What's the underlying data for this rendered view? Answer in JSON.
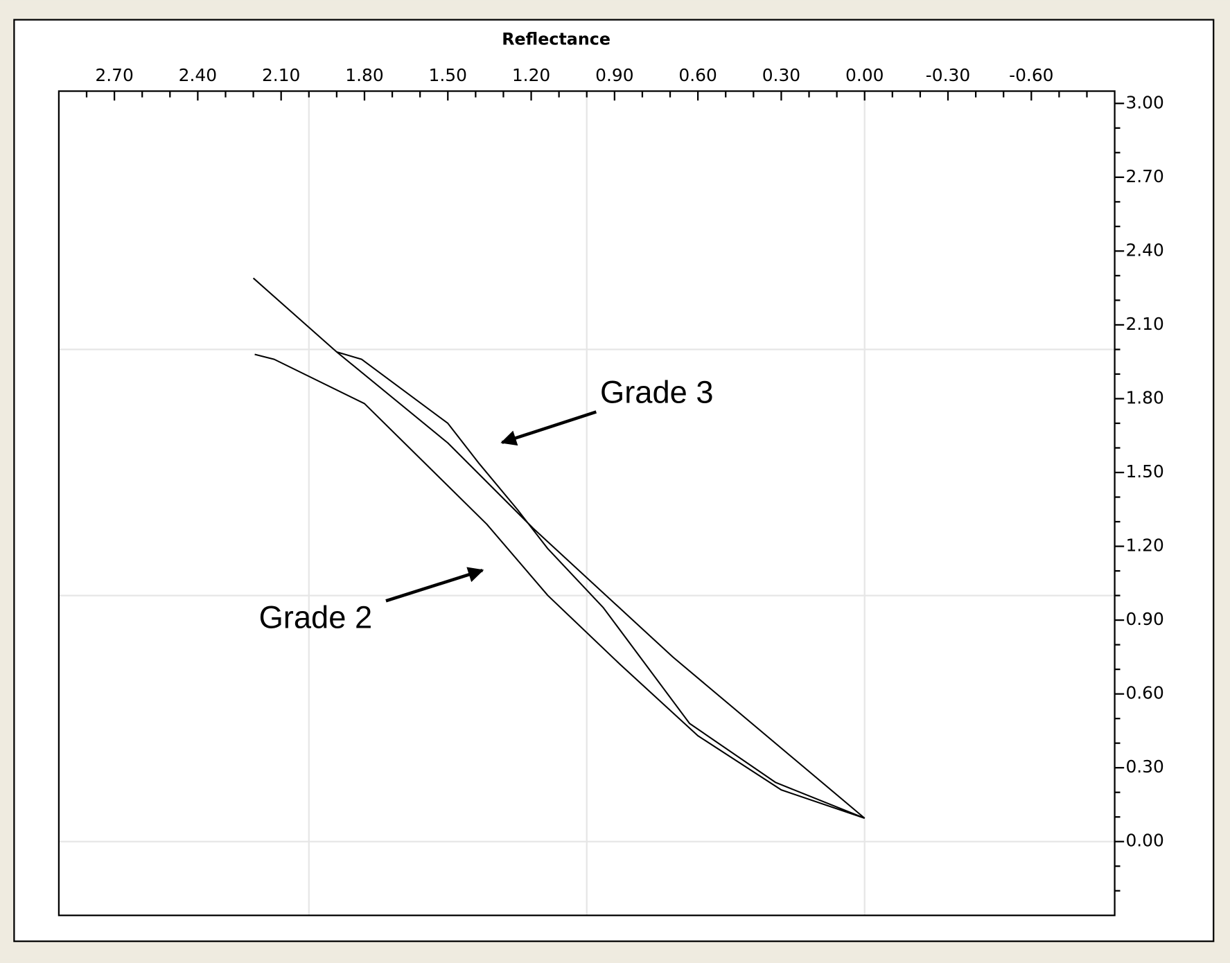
{
  "chart_data": {
    "type": "line",
    "x_label": "Reflectance",
    "xlim": [
      2.9,
      -0.9
    ],
    "ylim": [
      -0.3,
      3.05
    ],
    "xticks": [
      {
        "value": 2.7,
        "label": "2.70"
      },
      {
        "value": 2.4,
        "label": "2.40"
      },
      {
        "value": 2.1,
        "label": "2.10"
      },
      {
        "value": 1.8,
        "label": "1.80"
      },
      {
        "value": 1.5,
        "label": "1.50"
      },
      {
        "value": 1.2,
        "label": "1.20"
      },
      {
        "value": 0.9,
        "label": "0.90"
      },
      {
        "value": 0.6,
        "label": "0.60"
      },
      {
        "value": 0.3,
        "label": "0.30"
      },
      {
        "value": 0,
        "label": "0.00"
      },
      {
        "value": -0.3,
        "label": "-0.30"
      },
      {
        "value": -0.6,
        "label": "-0.60"
      }
    ],
    "yticks": [
      {
        "value": 0,
        "label": "0.00"
      },
      {
        "value": 0.3,
        "label": "0.30"
      },
      {
        "value": 0.6,
        "label": "0.60"
      },
      {
        "value": 0.9,
        "label": "0.90"
      },
      {
        "value": 1.2,
        "label": "1.20"
      },
      {
        "value": 1.5,
        "label": "1.50"
      },
      {
        "value": 1.8,
        "label": "1.80"
      },
      {
        "value": 2.1,
        "label": "2.10"
      },
      {
        "value": 2.4,
        "label": "2.40"
      },
      {
        "value": 2.7,
        "label": "2.70"
      },
      {
        "value": 3,
        "label": "3.00"
      }
    ],
    "xminorticks": [
      2.8,
      2.6,
      2.5,
      2.3,
      2.2,
      2.0,
      1.9,
      1.7,
      1.6,
      1.4,
      1.3,
      1.1,
      1.0,
      0.8,
      0.7,
      0.5,
      0.4,
      0.2,
      0.1,
      -0.1,
      -0.2,
      -0.4,
      -0.5,
      -0.7,
      -0.8
    ],
    "yminorticks": [
      -0.2,
      -0.1,
      0.1,
      0.2,
      0.4,
      0.5,
      0.7,
      0.8,
      1.0,
      1.1,
      1.3,
      1.4,
      1.6,
      1.7,
      1.9,
      2.0,
      2.2,
      2.3,
      2.5,
      2.6,
      2.8,
      2.9
    ],
    "xgrid": [
      2,
      1,
      0
    ],
    "ygrid": [
      2,
      1,
      0
    ],
    "series": [
      {
        "color": "#000000",
        "x": [
          2.2,
          2.0,
          1.9,
          1.5,
          1.19,
          0.69,
          0
        ],
        "values": [
          2.29,
          2.09,
          1.99,
          1.62,
          1.27,
          0.75,
          0.095
        ]
      },
      {
        "color": "#000000",
        "x": [
          1.9,
          1.81,
          1.5,
          1.39,
          1.25,
          1.14,
          0.94,
          0.63,
          0.32,
          0
        ],
        "values": [
          1.99,
          1.96,
          1.7,
          1.54,
          1.35,
          1.19,
          0.95,
          0.48,
          0.24,
          0.095
        ]
      },
      {
        "color": "#000000",
        "x": [
          2.195,
          2.125,
          1.8,
          1.36,
          1.14,
          0.88,
          0.6,
          0.3,
          0
        ],
        "values": [
          1.98,
          1.96,
          1.78,
          1.29,
          1.0,
          0.72,
          0.43,
          0.21,
          0.095
        ]
      }
    ],
    "annotations": [
      "Grade 3",
      "Grade 2"
    ]
  }
}
